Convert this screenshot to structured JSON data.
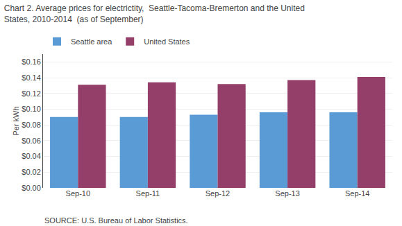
{
  "chart_data": {
    "type": "bar",
    "title": [
      "Chart 2. Average prices for electrictity,  Seattle-Tacoma-Bremerton and the United",
      "States, 2010-2014  (as of September)"
    ],
    "ylabel": "Per kWh",
    "annotations": [
      "SOURCE: U.S. Bureau of Labor Statistics."
    ],
    "categories": [
      "Sep-10",
      "Sep-11",
      "Sep-12",
      "Sep-13",
      "Sep-14"
    ],
    "series": [
      {
        "name": "Seattle area",
        "color": "#5B9BD5",
        "values": [
          0.09,
          0.09,
          0.093,
          0.096,
          0.096
        ]
      },
      {
        "name": "United States",
        "color": "#943F6A",
        "values": [
          0.131,
          0.134,
          0.132,
          0.137,
          0.141
        ]
      }
    ],
    "ylim": [
      0,
      0.17
    ],
    "yticks": [
      {
        "value": 0.0,
        "label": "$0.00"
      },
      {
        "value": 0.02,
        "label": "$0.02"
      },
      {
        "value": 0.04,
        "label": "$0.04"
      },
      {
        "value": 0.06,
        "label": "$0.06"
      },
      {
        "value": 0.08,
        "label": "$0.08"
      },
      {
        "value": 0.1,
        "label": "$0.10"
      },
      {
        "value": 0.12,
        "label": "$0.12"
      },
      {
        "value": 0.14,
        "label": "$0.14"
      },
      {
        "value": 0.16,
        "label": "$0.16"
      }
    ],
    "grid": true,
    "legend": "upper left"
  }
}
